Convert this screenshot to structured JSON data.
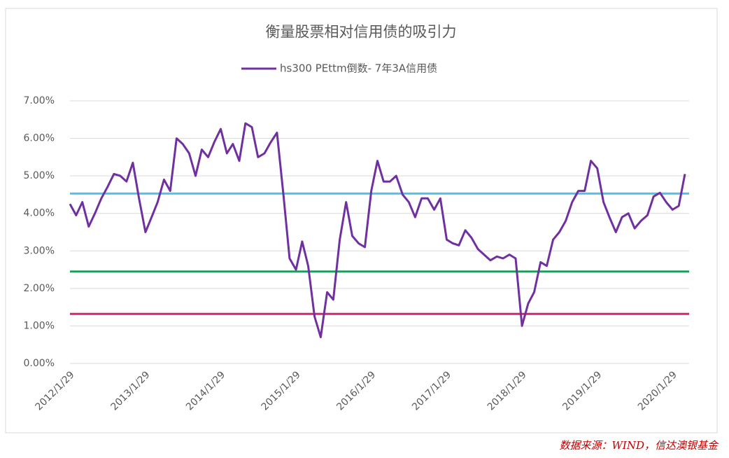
{
  "chart_data": {
    "type": "line",
    "title": "衡量股票相对信用债的吸引力",
    "source": "数据来源：WIND，信达澳银基金",
    "x": [
      "2012/1/29",
      "2012/2/28",
      "2012/3/29",
      "2012/4/29",
      "2012/5/29",
      "2012/6/29",
      "2012/7/29",
      "2012/8/29",
      "2012/9/29",
      "2012/10/29",
      "2012/11/29",
      "2012/12/29",
      "2013/1/29",
      "2013/2/28",
      "2013/3/29",
      "2013/4/29",
      "2013/5/29",
      "2013/6/29",
      "2013/7/29",
      "2013/8/29",
      "2013/9/29",
      "2013/10/29",
      "2013/11/29",
      "2013/12/29",
      "2014/1/29",
      "2014/2/28",
      "2014/3/29",
      "2014/4/29",
      "2014/5/29",
      "2014/6/29",
      "2014/7/29",
      "2014/8/29",
      "2014/9/29",
      "2014/10/29",
      "2014/11/29",
      "2014/12/29",
      "2015/1/29",
      "2015/2/28",
      "2015/3/29",
      "2015/4/29",
      "2015/5/29",
      "2015/6/29",
      "2015/7/29",
      "2015/8/29",
      "2015/9/29",
      "2015/10/29",
      "2015/11/29",
      "2015/12/29",
      "2016/1/29",
      "2016/2/28",
      "2016/3/29",
      "2016/4/29",
      "2016/5/29",
      "2016/6/29",
      "2016/7/29",
      "2016/8/29",
      "2016/9/29",
      "2016/10/29",
      "2016/11/29",
      "2016/12/29",
      "2017/1/29",
      "2017/2/28",
      "2017/3/29",
      "2017/4/29",
      "2017/5/29",
      "2017/6/29",
      "2017/7/29",
      "2017/8/29",
      "2017/9/29",
      "2017/10/29",
      "2017/11/29",
      "2017/12/29",
      "2018/1/29",
      "2018/2/28",
      "2018/3/29",
      "2018/4/29",
      "2018/5/29",
      "2018/6/29",
      "2018/7/29",
      "2018/8/29",
      "2018/9/29",
      "2018/10/29",
      "2018/11/29",
      "2018/12/29",
      "2019/1/29",
      "2019/2/28",
      "2019/3/29",
      "2019/4/29",
      "2019/5/29",
      "2019/6/29",
      "2019/7/29",
      "2019/8/29",
      "2019/9/29",
      "2019/10/29",
      "2019/11/29",
      "2019/12/29",
      "2020/1/29",
      "2020/2/28",
      "2020/3/29"
    ],
    "series": [
      {
        "name": "hs300 PEttm倒数- 7年3A信用债",
        "color": "#7030a0",
        "values": [
          4.25,
          3.95,
          4.3,
          3.65,
          4.0,
          4.4,
          4.7,
          5.05,
          5.0,
          4.85,
          5.35,
          4.4,
          3.5,
          3.9,
          4.3,
          4.9,
          4.6,
          6.0,
          5.85,
          5.6,
          5.0,
          5.7,
          5.5,
          5.9,
          6.25,
          5.6,
          5.85,
          5.4,
          6.4,
          6.3,
          5.5,
          5.6,
          5.9,
          6.15,
          4.5,
          2.8,
          2.5,
          3.25,
          2.6,
          1.25,
          0.7,
          1.9,
          1.7,
          3.3,
          4.3,
          3.4,
          3.2,
          3.1,
          4.6,
          5.4,
          4.85,
          4.85,
          5.0,
          4.5,
          4.3,
          3.9,
          4.4,
          4.4,
          4.1,
          4.4,
          3.3,
          3.2,
          3.15,
          3.55,
          3.35,
          3.05,
          2.9,
          2.75,
          2.85,
          2.8,
          2.9,
          2.8,
          1.0,
          1.6,
          1.9,
          2.7,
          2.6,
          3.3,
          3.5,
          3.8,
          4.3,
          4.6,
          4.6,
          5.4,
          5.2,
          4.3,
          3.9,
          3.5,
          3.9,
          4.0,
          3.6,
          3.8,
          3.95,
          4.45,
          4.55,
          4.3,
          4.1,
          4.2,
          5.05
        ]
      }
    ],
    "reference_lines": [
      {
        "value": 4.53,
        "color": "#4fc3e8"
      },
      {
        "value": 2.45,
        "color": "#1e9e5a"
      },
      {
        "value": 1.32,
        "color": "#d6246e"
      }
    ],
    "xlim": [
      "2012/1/29",
      "2020/3/29"
    ],
    "xticks": [
      "2012/1/29",
      "2013/1/29",
      "2014/1/29",
      "2015/1/29",
      "2016/1/29",
      "2017/1/29",
      "2018/1/29",
      "2019/1/29",
      "2020/1/29"
    ],
    "ylim": [
      0,
      7
    ],
    "yticks": [
      {
        "value": 0,
        "label": "0.00%"
      },
      {
        "value": 1,
        "label": "1.00%"
      },
      {
        "value": 2,
        "label": "2.00%"
      },
      {
        "value": 3,
        "label": "3.00%"
      },
      {
        "value": 4,
        "label": "4.00%"
      },
      {
        "value": 5,
        "label": "5.00%"
      },
      {
        "value": 6,
        "label": "6.00%"
      },
      {
        "value": 7,
        "label": "7.00%"
      }
    ],
    "grid": true
  }
}
